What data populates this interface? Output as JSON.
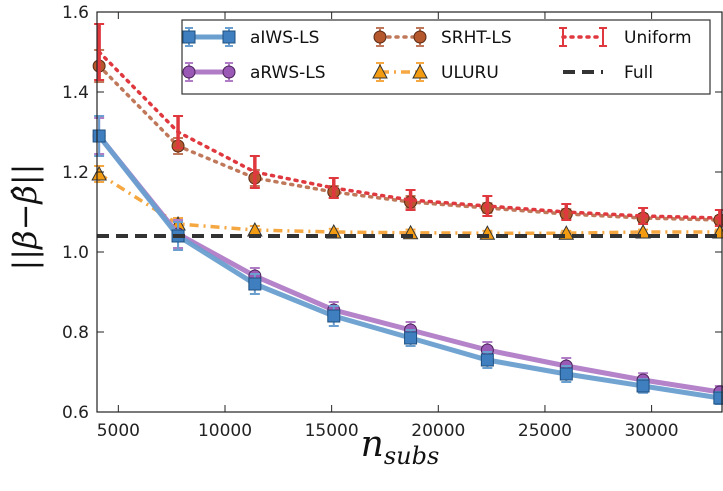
{
  "chart_data": {
    "type": "line",
    "x": [
      4100,
      7800,
      11400,
      15100,
      18700,
      22300,
      26000,
      29600,
      33200
    ],
    "xlim": [
      4000,
      33300
    ],
    "ylim": [
      0.6,
      1.6
    ],
    "xticks": [
      5000,
      10000,
      15000,
      20000,
      25000,
      30000
    ],
    "xtick_labels": [
      "5000",
      "10000",
      "15000",
      "20000",
      "25000",
      "30000"
    ],
    "yticks": [
      0.6,
      0.8,
      1.0,
      1.2,
      1.4,
      1.6
    ],
    "ytick_labels": [
      "0.6",
      "0.8",
      "1.0",
      "1.2",
      "1.4",
      "1.6"
    ],
    "xlabel_base": "n",
    "xlabel_sub": "subs",
    "ylabel": "||β−β̂||",
    "grid": false,
    "legend_position": "top-right",
    "series": [
      {
        "name": "aIWS-LS",
        "style": "solid",
        "marker": "square",
        "color": "#3f7fbf",
        "linecolor": "#6a9fd0",
        "values": [
          1.29,
          1.04,
          0.92,
          0.84,
          0.785,
          0.73,
          0.695,
          0.665,
          0.635
        ],
        "errors": [
          0.05,
          0.035,
          0.025,
          0.025,
          0.02,
          0.02,
          0.02,
          0.017,
          0.015
        ]
      },
      {
        "name": "aRWS-LS",
        "style": "solid",
        "marker": "circle",
        "color": "#9b59b6",
        "linecolor": "#b07cc6",
        "values": [
          1.29,
          1.045,
          0.94,
          0.855,
          0.805,
          0.755,
          0.715,
          0.68,
          0.65
        ],
        "errors": [
          0.045,
          0.035,
          0.02,
          0.02,
          0.02,
          0.02,
          0.02,
          0.017,
          0.015
        ]
      },
      {
        "name": "SRHT-LS",
        "style": "dotted",
        "marker": "circle",
        "color": "#b5582e",
        "linecolor": "#c0785a",
        "values": [
          1.465,
          1.265,
          1.185,
          1.15,
          1.125,
          1.11,
          1.095,
          1.085,
          1.08
        ],
        "errors": [
          0.04,
          0.02,
          0.02,
          0.015,
          0.015,
          0.012,
          0.012,
          0.01,
          0.01
        ]
      },
      {
        "name": "ULURU",
        "style": "dashdot",
        "marker": "triangle",
        "color": "#f39c12",
        "linecolor": "#f5a742",
        "values": [
          1.195,
          1.07,
          1.055,
          1.05,
          1.048,
          1.047,
          1.047,
          1.05,
          1.05
        ],
        "errors": [
          0.02,
          0.015,
          0.01,
          0.008,
          0.008,
          0.006,
          0.006,
          0.006,
          0.006
        ]
      },
      {
        "name": "Uniform",
        "style": "dotted",
        "marker": "none",
        "color": "#e0383f",
        "linecolor": "#e0383f",
        "values": [
          1.5,
          1.3,
          1.2,
          1.16,
          1.13,
          1.115,
          1.1,
          1.09,
          1.085
        ],
        "errors": [
          0.07,
          0.04,
          0.04,
          0.025,
          0.025,
          0.025,
          0.02,
          0.02,
          0.02
        ]
      },
      {
        "name": "Full",
        "style": "dashed",
        "marker": "none",
        "color": "#333333",
        "linecolor": "#333333",
        "constant": 1.04
      }
    ]
  }
}
